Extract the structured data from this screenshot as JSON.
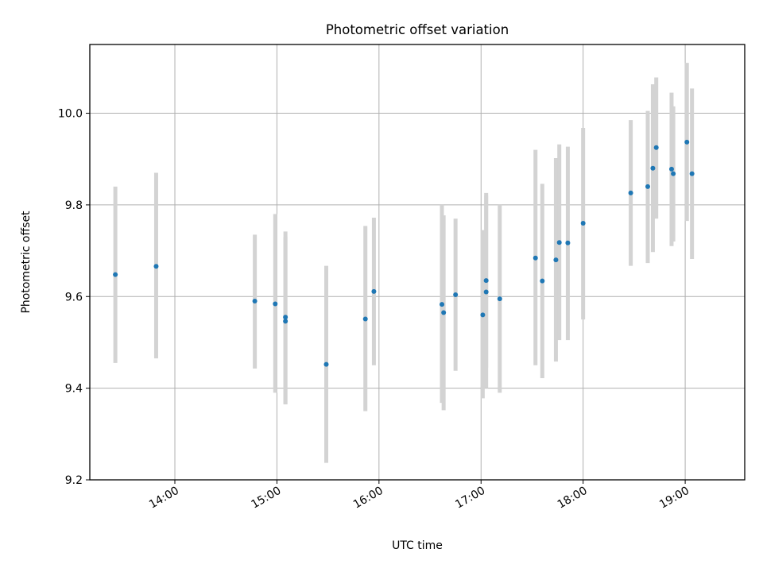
{
  "chart_data": {
    "type": "scatter",
    "title": "Photometric offset variation",
    "xlabel": "UTC time",
    "ylabel": "Photometric offset",
    "x_ticks": [
      "14:00",
      "15:00",
      "16:00",
      "17:00",
      "18:00",
      "19:00"
    ],
    "y_ticks": [
      "9.2",
      "9.4",
      "9.6",
      "9.8",
      "10.0"
    ],
    "xlim": [
      "13:10",
      "19:35"
    ],
    "ylim": [
      9.2,
      10.15
    ],
    "grid": true,
    "point_color": "#1f77b4",
    "errorbar_color": "#d3d3d3",
    "points": [
      {
        "time": "13:25",
        "y": 9.648,
        "ylo": 9.455,
        "yhi": 9.84
      },
      {
        "time": "13:49",
        "y": 9.666,
        "ylo": 9.465,
        "yhi": 9.87
      },
      {
        "time": "14:47",
        "y": 9.59,
        "ylo": 9.443,
        "yhi": 9.735
      },
      {
        "time": "14:59",
        "y": 9.584,
        "ylo": 9.39,
        "yhi": 9.78
      },
      {
        "time": "15:05",
        "y": 9.555,
        "ylo": 9.365,
        "yhi": 9.742
      },
      {
        "time": "15:05",
        "y": 9.546,
        "ylo": 9.365,
        "yhi": 9.73
      },
      {
        "time": "15:29",
        "y": 9.452,
        "ylo": 9.237,
        "yhi": 9.667
      },
      {
        "time": "15:52",
        "y": 9.551,
        "ylo": 9.35,
        "yhi": 9.754
      },
      {
        "time": "15:57",
        "y": 9.611,
        "ylo": 9.45,
        "yhi": 9.772
      },
      {
        "time": "16:37",
        "y": 9.583,
        "ylo": 9.368,
        "yhi": 9.8
      },
      {
        "time": "16:38",
        "y": 9.565,
        "ylo": 9.352,
        "yhi": 9.777
      },
      {
        "time": "16:45",
        "y": 9.604,
        "ylo": 9.438,
        "yhi": 9.77
      },
      {
        "time": "17:01",
        "y": 9.56,
        "ylo": 9.378,
        "yhi": 9.745
      },
      {
        "time": "17:03",
        "y": 9.635,
        "ylo": 9.445,
        "yhi": 9.826
      },
      {
        "time": "17:03",
        "y": 9.61,
        "ylo": 9.4,
        "yhi": 9.82
      },
      {
        "time": "17:11",
        "y": 9.595,
        "ylo": 9.39,
        "yhi": 9.8
      },
      {
        "time": "17:32",
        "y": 9.684,
        "ylo": 9.45,
        "yhi": 9.92
      },
      {
        "time": "17:36",
        "y": 9.634,
        "ylo": 9.422,
        "yhi": 9.846
      },
      {
        "time": "17:44",
        "y": 9.68,
        "ylo": 9.458,
        "yhi": 9.902
      },
      {
        "time": "17:46",
        "y": 9.718,
        "ylo": 9.505,
        "yhi": 9.932
      },
      {
        "time": "17:51",
        "y": 9.717,
        "ylo": 9.505,
        "yhi": 9.927
      },
      {
        "time": "18:00",
        "y": 9.76,
        "ylo": 9.55,
        "yhi": 9.968
      },
      {
        "time": "18:28",
        "y": 9.826,
        "ylo": 9.667,
        "yhi": 9.985
      },
      {
        "time": "18:38",
        "y": 9.84,
        "ylo": 9.673,
        "yhi": 10.005
      },
      {
        "time": "18:41",
        "y": 9.88,
        "ylo": 9.697,
        "yhi": 10.063
      },
      {
        "time": "18:43",
        "y": 9.925,
        "ylo": 9.77,
        "yhi": 10.078
      },
      {
        "time": "18:52",
        "y": 9.878,
        "ylo": 9.71,
        "yhi": 10.045
      },
      {
        "time": "18:53",
        "y": 9.868,
        "ylo": 9.72,
        "yhi": 10.015
      },
      {
        "time": "19:01",
        "y": 9.937,
        "ylo": 9.765,
        "yhi": 10.11
      },
      {
        "time": "19:04",
        "y": 9.868,
        "ylo": 9.682,
        "yhi": 10.054
      }
    ]
  }
}
